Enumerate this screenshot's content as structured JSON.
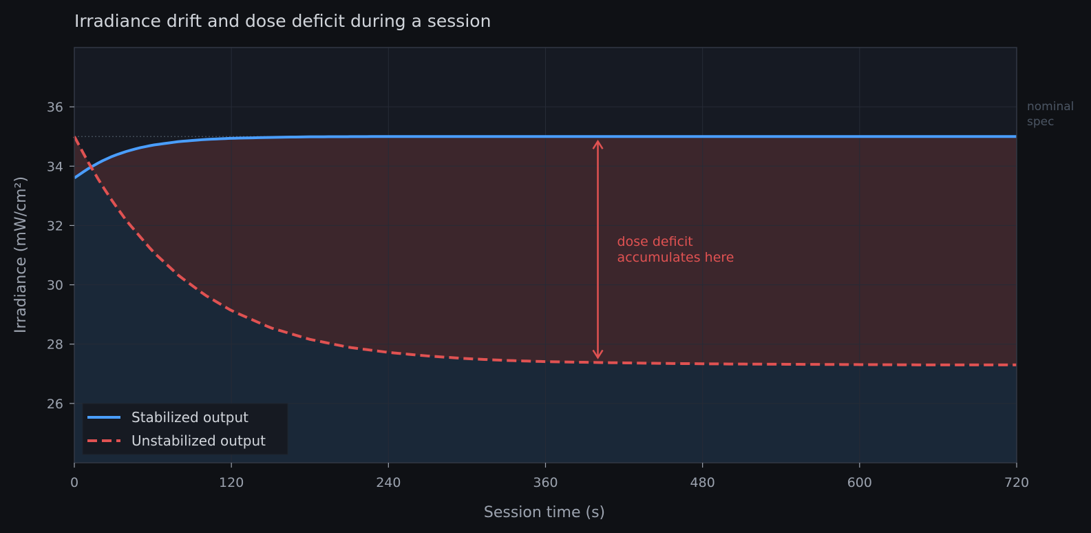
{
  "chart_data": {
    "type": "line",
    "title": "Irradiance drift and dose deficit during a session",
    "xlabel": "Session time (s)",
    "ylabel": "Irradiance (mW/cm²)",
    "xlim": [
      0,
      720
    ],
    "ylim": [
      24,
      38
    ],
    "xticks": [
      0,
      120,
      240,
      360,
      480,
      600,
      720
    ],
    "yticks": [
      26,
      28,
      30,
      32,
      34,
      36
    ],
    "grid": true,
    "legend_position": "bottom-left",
    "nominal_spec": {
      "value": 35,
      "label": [
        "nominal",
        "spec"
      ],
      "color": "#4b5563"
    },
    "series": [
      {
        "name": "Stabilized output",
        "style": "solid",
        "color": "#4a9eff",
        "x": [
          0,
          10,
          20,
          30,
          40,
          50,
          60,
          80,
          100,
          120,
          150,
          180,
          240,
          300,
          360,
          480,
          600,
          720
        ],
        "y": [
          33.6,
          33.9,
          34.15,
          34.35,
          34.5,
          34.62,
          34.71,
          34.83,
          34.9,
          34.94,
          34.97,
          34.99,
          35.0,
          35.0,
          35.0,
          35.0,
          35.0,
          35.0
        ]
      },
      {
        "name": "Unstabilized output",
        "style": "dashed",
        "color": "#e05252",
        "x": [
          0,
          10,
          20,
          30,
          40,
          60,
          80,
          100,
          120,
          150,
          180,
          210,
          240,
          270,
          300,
          330,
          360,
          400,
          450,
          500,
          550,
          600,
          650,
          720
        ],
        "y": [
          35.0,
          34.18,
          33.43,
          32.76,
          32.15,
          31.12,
          30.3,
          29.65,
          29.13,
          28.55,
          28.16,
          27.89,
          27.72,
          27.6,
          27.51,
          27.45,
          27.41,
          27.38,
          27.35,
          27.33,
          27.32,
          27.31,
          27.3,
          27.3
        ]
      }
    ],
    "annotation": {
      "text": [
        "dose deficit",
        "accumulates here"
      ],
      "arrow_x": 400,
      "arrow_y_top": 35.0,
      "arrow_y_bottom": 27.38,
      "color": "#e05252"
    },
    "colors": {
      "background": "#0f1115",
      "plot_background": "#161a23",
      "grid": "#262b36",
      "spine": "#323845",
      "stable_fill": "#1a2838",
      "deficit_fill": "#3c262c"
    }
  }
}
